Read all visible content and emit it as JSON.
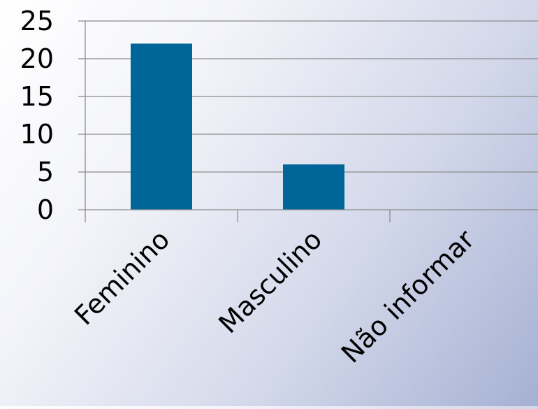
{
  "chart_data": {
    "type": "bar",
    "title": "",
    "xlabel": "",
    "ylabel": "",
    "categories": [
      "Feminino",
      "Masculino",
      "Não informar"
    ],
    "values": [
      22,
      6,
      0
    ],
    "ylim": [
      0,
      25
    ],
    "yticks": [
      0,
      5,
      10,
      15,
      20,
      25
    ],
    "grid": true,
    "legend": "none",
    "colors": {
      "bar": "#006699",
      "grid": "#8c8c8c",
      "axis": "#8c8c8c"
    }
  }
}
